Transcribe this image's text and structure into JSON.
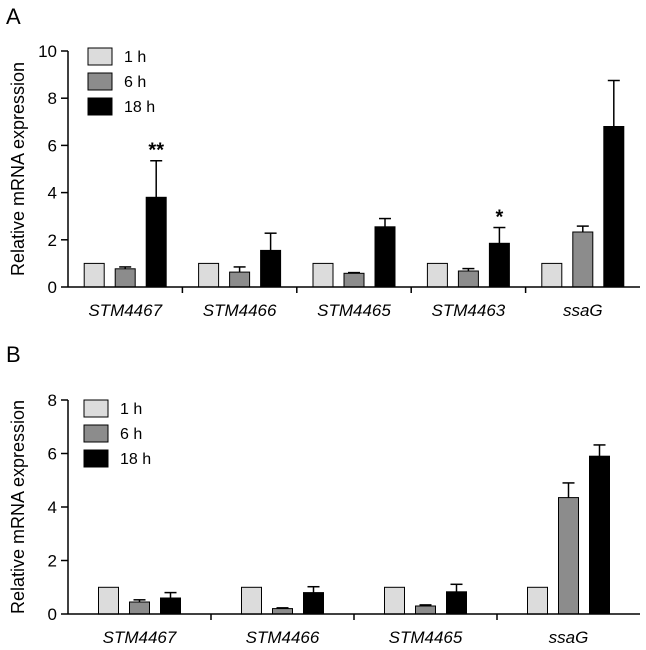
{
  "chart_data": [
    {
      "panel": "A",
      "type": "bar",
      "ylabel": "Relative mRNA expression",
      "xlabel": "",
      "ylim": [
        0,
        10
      ],
      "yticks": [
        "0",
        "2",
        "4",
        "6",
        "8",
        "10"
      ],
      "categories": [
        "STM4467",
        "STM4466",
        "STM4465",
        "STM4463",
        "ssaG"
      ],
      "legend_position": "top-left",
      "series": [
        {
          "name": "1 h",
          "color": "#dcdcdc",
          "values": [
            1,
            1,
            1,
            1,
            1
          ],
          "errors": [
            0,
            0,
            0,
            0,
            0
          ]
        },
        {
          "name": "6 h",
          "color": "#8c8c8c",
          "values": [
            0.77,
            0.63,
            0.58,
            0.68,
            2.33
          ],
          "errors": [
            0.08,
            0.22,
            0.03,
            0.1,
            0.25
          ]
        },
        {
          "name": "18 h",
          "color": "#000000",
          "values": [
            3.8,
            1.55,
            2.55,
            1.85,
            6.8
          ],
          "errors": [
            1.55,
            0.73,
            0.35,
            0.67,
            1.95
          ]
        }
      ],
      "annotations": [
        {
          "category": "STM4467",
          "series": "18 h",
          "text": "**"
        },
        {
          "category": "STM4463",
          "series": "18 h",
          "text": "*"
        }
      ]
    },
    {
      "panel": "B",
      "type": "bar",
      "ylabel": "Relative mRNA expression",
      "xlabel": "",
      "ylim": [
        0,
        8
      ],
      "yticks": [
        "0",
        "2",
        "4",
        "6",
        "8"
      ],
      "categories": [
        "STM4467",
        "STM4466",
        "STM4465",
        "ssaG"
      ],
      "legend_position": "top-left",
      "series": [
        {
          "name": "1 h",
          "color": "#dcdcdc",
          "values": [
            1,
            1,
            1,
            1
          ],
          "errors": [
            0,
            0,
            0,
            0
          ]
        },
        {
          "name": "6 h",
          "color": "#8c8c8c",
          "values": [
            0.45,
            0.2,
            0.3,
            4.35
          ],
          "errors": [
            0.08,
            0.03,
            0.04,
            0.55
          ]
        },
        {
          "name": "18 h",
          "color": "#000000",
          "values": [
            0.6,
            0.8,
            0.83,
            5.9
          ],
          "errors": [
            0.2,
            0.22,
            0.28,
            0.42
          ]
        }
      ],
      "annotations": []
    }
  ]
}
